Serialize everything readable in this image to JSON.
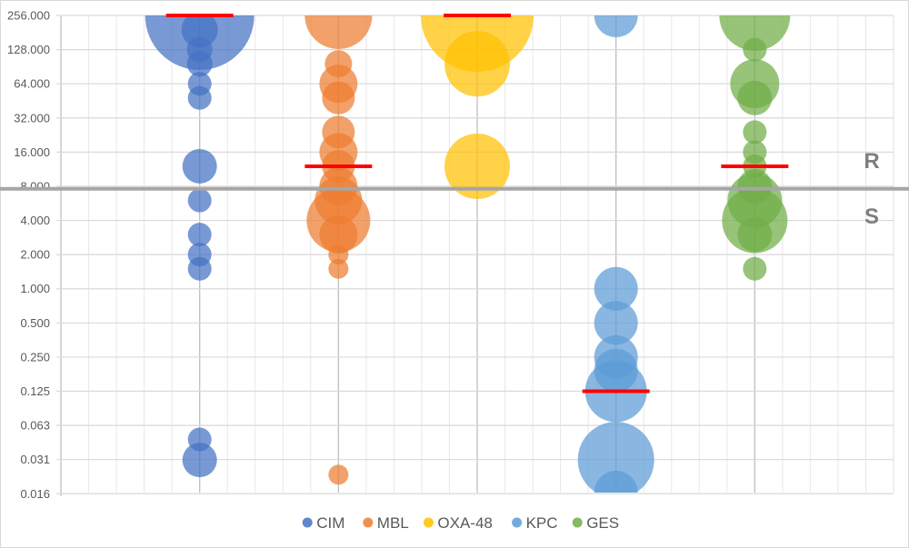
{
  "chart_data": {
    "type": "scatter",
    "subtype": "bubble",
    "title": "",
    "xlabel": "",
    "ylabel": "",
    "yscale": "log2",
    "ylim": [
      0.016,
      256
    ],
    "xlim": [
      0,
      6
    ],
    "grid": true,
    "y_tick_labels": [
      "256.000",
      "128.000",
      "64.000",
      "32.000",
      "16.000",
      "8.000",
      "4.000",
      "2.000",
      "1.000",
      "0.500",
      "0.250",
      "0.125",
      "0.063",
      "0.031",
      "0.016"
    ],
    "y_tick_values": [
      256,
      128,
      64,
      32,
      16,
      8,
      4,
      2,
      1,
      0.5,
      0.25,
      0.125,
      0.0625,
      0.03125,
      0.015625
    ],
    "threshold": {
      "value": 7.6,
      "label_above": "R",
      "label_below": "S",
      "color": "#a6a6a6"
    },
    "median_color": "#ff0000",
    "legend_position": "bottom",
    "series": [
      {
        "name": "CIM",
        "color": "#4472c4",
        "x": 1,
        "median": 256,
        "points": [
          {
            "y": 256,
            "size": 60
          },
          {
            "y": 192,
            "size": 20
          },
          {
            "y": 128,
            "size": 14
          },
          {
            "y": 96,
            "size": 14
          },
          {
            "y": 64,
            "size": 13
          },
          {
            "y": 48,
            "size": 13
          },
          {
            "y": 12,
            "size": 19
          },
          {
            "y": 6,
            "size": 13
          },
          {
            "y": 3,
            "size": 13
          },
          {
            "y": 2,
            "size": 13
          },
          {
            "y": 1.5,
            "size": 13
          },
          {
            "y": 0.047,
            "size": 13
          },
          {
            "y": 0.031,
            "size": 19
          }
        ]
      },
      {
        "name": "MBL",
        "color": "#ed7d31",
        "x": 2,
        "median": 12,
        "points": [
          {
            "y": 256,
            "size": 37
          },
          {
            "y": 96,
            "size": 15
          },
          {
            "y": 64,
            "size": 21
          },
          {
            "y": 48,
            "size": 18
          },
          {
            "y": 24,
            "size": 18
          },
          {
            "y": 16,
            "size": 21
          },
          {
            "y": 12,
            "size": 18
          },
          {
            "y": 8,
            "size": 21
          },
          {
            "y": 6,
            "size": 26
          },
          {
            "y": 4,
            "size": 35
          },
          {
            "y": 3,
            "size": 21
          },
          {
            "y": 2,
            "size": 11
          },
          {
            "y": 1.5,
            "size": 11
          },
          {
            "y": 0.023,
            "size": 11
          }
        ]
      },
      {
        "name": "OXA-48",
        "color": "#ffc000",
        "x": 3,
        "median": 256,
        "points": [
          {
            "y": 256,
            "size": 62
          },
          {
            "y": 96,
            "size": 36
          },
          {
            "y": 12,
            "size": 36
          }
        ]
      },
      {
        "name": "KPC",
        "color": "#5b9bd5",
        "x": 4,
        "median": 0.125,
        "points": [
          {
            "y": 256,
            "size": 24
          },
          {
            "y": 1,
            "size": 24
          },
          {
            "y": 0.5,
            "size": 24
          },
          {
            "y": 0.25,
            "size": 24
          },
          {
            "y": 0.19,
            "size": 24
          },
          {
            "y": 0.125,
            "size": 34
          },
          {
            "y": 0.031,
            "size": 42
          },
          {
            "y": 0.016,
            "size": 24
          }
        ]
      },
      {
        "name": "GES",
        "color": "#70ad47",
        "x": 5,
        "median": 12,
        "points": [
          {
            "y": 256,
            "size": 39
          },
          {
            "y": 128,
            "size": 13
          },
          {
            "y": 64,
            "size": 27
          },
          {
            "y": 48,
            "size": 19
          },
          {
            "y": 24,
            "size": 13
          },
          {
            "y": 16,
            "size": 13
          },
          {
            "y": 12,
            "size": 13
          },
          {
            "y": 8,
            "size": 19
          },
          {
            "y": 6,
            "size": 30
          },
          {
            "y": 4,
            "size": 36
          },
          {
            "y": 3,
            "size": 19
          },
          {
            "y": 1.5,
            "size": 13
          }
        ]
      }
    ]
  }
}
